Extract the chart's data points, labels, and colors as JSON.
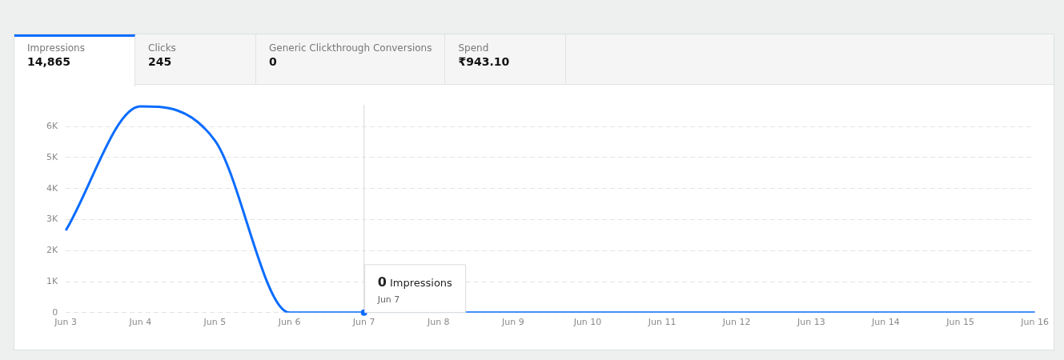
{
  "chart_data": [
    {
      "type": "other",
      "annotations": [
        "Impressions",
        "14,865",
        "Clicks",
        "245",
        "Generic Clickthrough Conversions",
        "0",
        "Spend",
        "₹943.10"
      ]
    },
    {
      "type": "line",
      "categories": [
        "Jun 3",
        "Jun 4",
        "Jun 5",
        "Jun 6",
        "Jun 7",
        "Jun 8",
        "Jun 9",
        "Jun 10",
        "Jun 11",
        "Jun 12",
        "Jun 13",
        "Jun 14",
        "Jun 15",
        "Jun 16"
      ],
      "series": [
        {
          "color": "#0a6cff",
          "values": [
            2650,
            6650,
            5550,
            0,
            0,
            0,
            0,
            0,
            0,
            0,
            0,
            0,
            0,
            0
          ]
        }
      ],
      "ylim": [
        0,
        6700
      ],
      "yticks": [
        {
          "value": 0,
          "label": "0"
        },
        {
          "value": 1000,
          "label": "1K"
        },
        {
          "value": 2000,
          "label": "2K"
        },
        {
          "value": 3000,
          "label": "3K"
        },
        {
          "value": 4000,
          "label": "4K"
        },
        {
          "value": 5000,
          "label": "5K"
        },
        {
          "value": 6000,
          "label": "6K"
        }
      ],
      "ref_lines": [
        {
          "axis": "x",
          "value": "Jun 7",
          "color": "#d8d8d8"
        }
      ],
      "grid": "y",
      "legend": false,
      "marker": "none",
      "line_style": "solid",
      "annotations": [
        {
          "text": "0 Impressions\nJun 7",
          "x": "Jun 7",
          "y": 0
        }
      ]
    }
  ]
}
